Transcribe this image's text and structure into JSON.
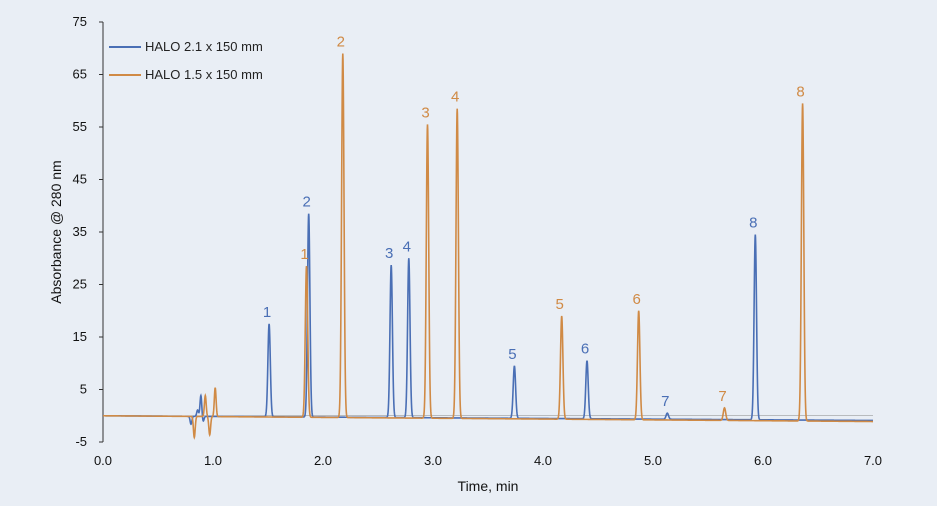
{
  "chart_data": {
    "type": "line",
    "xlabel": "Time, min",
    "ylabel": "Absorbance @ 280 nm",
    "xlim": [
      0,
      7
    ],
    "ylim": [
      -5,
      75
    ],
    "xticks": [
      "0.0",
      "1.0",
      "2.0",
      "3.0",
      "4.0",
      "5.0",
      "6.0",
      "7.0"
    ],
    "yticks": [
      "-5",
      "5",
      "15",
      "25",
      "35",
      "45",
      "55",
      "65",
      "75"
    ],
    "grid": false,
    "legend": "top-left",
    "series": [
      {
        "name": "HALO 2.1 x 150 mm",
        "color": "#4a6fb5",
        "baseline": [
          0,
          -0.9
        ],
        "disturbances": [
          {
            "x": 0.8,
            "y": -1.5
          },
          {
            "x": 0.86,
            "y": 1.2
          },
          {
            "x": 0.89,
            "y": 4
          },
          {
            "x": 0.91,
            "y": -1
          }
        ],
        "peaks": [
          {
            "label": "1",
            "x": 1.51,
            "y": 17.5
          },
          {
            "label": "2",
            "x": 1.87,
            "y": 38.5
          },
          {
            "label": "3",
            "x": 2.62,
            "y": 28.7
          },
          {
            "label": "4",
            "x": 2.78,
            "y": 30
          },
          {
            "label": "5",
            "x": 3.74,
            "y": 9.5
          },
          {
            "label": "6",
            "x": 4.4,
            "y": 10.5
          },
          {
            "label": "7",
            "x": 5.13,
            "y": 0.5
          },
          {
            "label": "8",
            "x": 5.93,
            "y": 34.5
          }
        ]
      },
      {
        "name": "HALO 1.5 x 150 mm",
        "color": "#d08a45",
        "baseline": [
          0,
          -1.1
        ],
        "disturbances": [
          {
            "x": 0.83,
            "y": -4
          },
          {
            "x": 0.93,
            "y": 4
          },
          {
            "x": 0.97,
            "y": -3.5
          },
          {
            "x": 1.02,
            "y": 5.5
          }
        ],
        "peaks": [
          {
            "label": "1",
            "x": 1.85,
            "y": 28.5
          },
          {
            "label": "2",
            "x": 2.18,
            "y": 69
          },
          {
            "label": "3",
            "x": 2.95,
            "y": 55.5
          },
          {
            "label": "4",
            "x": 3.22,
            "y": 58.5
          },
          {
            "label": "5",
            "x": 4.17,
            "y": 19
          },
          {
            "label": "6",
            "x": 4.87,
            "y": 20
          },
          {
            "label": "7",
            "x": 5.65,
            "y": 1.5
          },
          {
            "label": "8",
            "x": 6.36,
            "y": 59.5
          }
        ]
      }
    ]
  }
}
